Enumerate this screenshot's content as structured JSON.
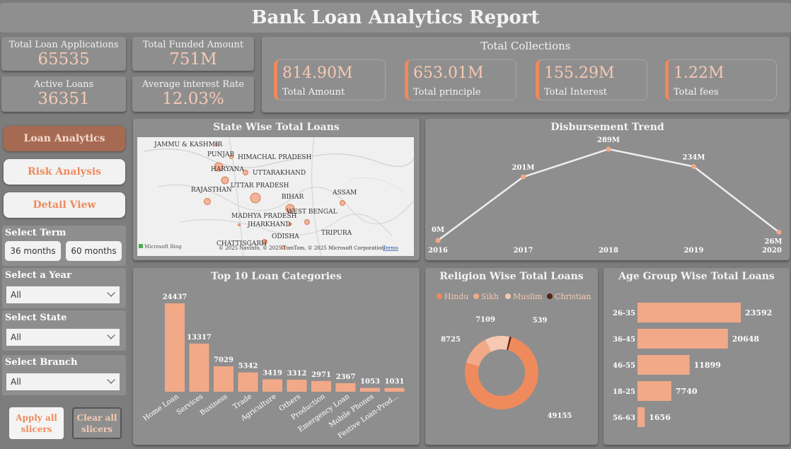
{
  "header": {
    "title": "Bank Loan Analytics Report"
  },
  "kpis": {
    "total_applications": {
      "label": "Total Loan Applications",
      "value": "65535"
    },
    "total_funded": {
      "label": "Total Funded Amount",
      "value": "751M"
    },
    "active_loans": {
      "label": "Active Loans",
      "value": "36351"
    },
    "avg_interest": {
      "label": "Average interest Rate",
      "value": "12.03%"
    }
  },
  "collections": {
    "title": "Total Collections",
    "cards": [
      {
        "value": "814.90M",
        "label": "Total Amount"
      },
      {
        "value": "653.01M",
        "label": "Total principle"
      },
      {
        "value": "155.29M",
        "label": "Total Interest"
      },
      {
        "value": "1.22M",
        "label": "Total fees"
      }
    ]
  },
  "nav": {
    "loan_analytics": "Loan Analytics",
    "risk_analysis": "Risk Analysis",
    "detail_view": "Detail View"
  },
  "slicers": {
    "term": {
      "title": "Select Term",
      "options": [
        "36 months",
        "60 months"
      ]
    },
    "year": {
      "title": "Select a Year",
      "value": "All"
    },
    "state": {
      "title": "Select State",
      "value": "All"
    },
    "branch": {
      "title": "Select Branch",
      "value": "All"
    }
  },
  "actions": {
    "apply_line1": "Apply all",
    "apply_line2": "slicers",
    "clear_line1": "Clear all",
    "clear_line2": "slicers"
  },
  "map": {
    "title": "State Wise Total Loans",
    "attribution": "© 2025 NavInfo, © 2025 TomTom, © 2025 Microsoft Corporation",
    "terms": "Terms",
    "brand": "Microsoft Bing",
    "labels": [
      "JAMMU & KASHMIR",
      "PUNJAB",
      "HIMACHAL PRADESH",
      "HARYANA",
      "UTTARAKHAND",
      "UTTAR PRADESH",
      "RAJASTHAN",
      "BIHAR",
      "ASSAM",
      "WEST BENGAL",
      "MADHYA PRADESH",
      "JHARKHAND",
      "TRIPURA",
      "ODISHA",
      "CHATTISGARH"
    ]
  },
  "colors": {
    "accent": "#ef8a5c",
    "bar": "#f2a987",
    "hindu": "#ef8a5c",
    "sikh": "#f2a987",
    "muslim": "#f6c9b3",
    "christian": "#5a2010"
  },
  "chart_data": [
    {
      "type": "line",
      "title": "Disbursement Trend",
      "x": [
        "2016",
        "2017",
        "2018",
        "2019",
        "2020"
      ],
      "values": [
        0,
        201,
        289,
        234,
        26
      ],
      "data_labels": [
        "0M",
        "201M",
        "289M",
        "234M",
        "26M"
      ]
    },
    {
      "type": "bar",
      "title": "Top 10 Loan Categories",
      "categories": [
        "Home Loan",
        "Services",
        "Business",
        "Trade",
        "Agriculture",
        "Others",
        "Production",
        "Emergency Loan",
        "Mobile Phones",
        "Festive Loan-Prod..."
      ],
      "values": [
        24437,
        13317,
        7029,
        5342,
        3419,
        3312,
        2971,
        2367,
        1053,
        1031
      ]
    },
    {
      "type": "pie",
      "title": "Religion Wise Total Loans",
      "categories": [
        "Hindu",
        "Sikh",
        "Muslim",
        "Christian"
      ],
      "values": [
        49155,
        8725,
        7109,
        539
      ]
    },
    {
      "type": "bar",
      "title": "Age Group Wise Total Loans",
      "categories": [
        "26-35",
        "36-45",
        "46-55",
        "18-25",
        "56-63"
      ],
      "values": [
        23592,
        20648,
        11899,
        7740,
        1656
      ]
    }
  ]
}
